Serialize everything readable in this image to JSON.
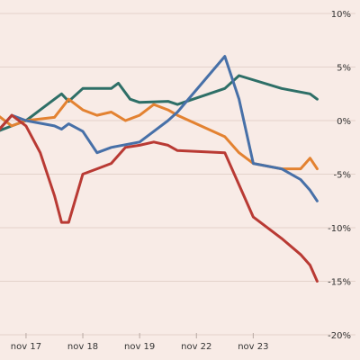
{
  "chart_data": {
    "type": "line",
    "x_ticks": [
      {
        "x": "2021-11-17",
        "label": "nov 17"
      },
      {
        "x": "2021-11-18",
        "label": "nov 18"
      },
      {
        "x": "2021-11-19",
        "label": "nov 19"
      },
      {
        "x": "2021-11-22",
        "label": "nov 22"
      },
      {
        "x": "2021-11-23",
        "label": "nov 23"
      }
    ],
    "y_ticks": [
      {
        "y": 10,
        "label": "10%"
      },
      {
        "y": 5,
        "label": "5%"
      },
      {
        "y": 0,
        "label": "0%"
      },
      {
        "y": -5,
        "label": "-5%"
      },
      {
        "y": -10,
        "label": "-10%"
      },
      {
        "y": -15,
        "label": "-15%"
      },
      {
        "y": -20,
        "label": "-20%"
      }
    ],
    "ylim": [
      -20,
      10
    ],
    "xlim": [
      "2021-11-16T13:00",
      "2021-11-24T04:00"
    ],
    "grid": "horizontal",
    "legend": "none",
    "y_axis_side": "right",
    "series": [
      {
        "color": "#2e6f67",
        "points": [
          [
            "2021-11-16T12:00",
            -1.0
          ],
          [
            "2021-11-16T18:00",
            -0.5
          ],
          [
            "2021-11-17T00:00",
            0.0
          ],
          [
            "2021-11-17T06:00",
            1.0
          ],
          [
            "2021-11-17T12:00",
            2.0
          ],
          [
            "2021-11-17T15:00",
            2.5
          ],
          [
            "2021-11-17T18:00",
            1.8
          ],
          [
            "2021-11-18T00:00",
            3.0
          ],
          [
            "2021-11-18T12:00",
            3.0
          ],
          [
            "2021-11-18T15:00",
            3.5
          ],
          [
            "2021-11-18T20:00",
            2.0
          ],
          [
            "2021-11-19T00:00",
            1.7
          ],
          [
            "2021-11-19T12:00",
            1.8
          ],
          [
            "2021-11-19T16:00",
            1.5
          ],
          [
            "2021-11-22T12:00",
            3.0
          ],
          [
            "2021-11-22T18:00",
            4.2
          ],
          [
            "2021-11-23T12:00",
            3.0
          ],
          [
            "2021-11-24T00:00",
            2.5
          ],
          [
            "2021-11-24T03:00",
            2.0
          ]
        ]
      },
      {
        "color": "#e38231",
        "points": [
          [
            "2021-11-16T12:00",
            0.5
          ],
          [
            "2021-11-16T18:00",
            -0.5
          ],
          [
            "2021-11-17T00:00",
            0.0
          ],
          [
            "2021-11-17T12:00",
            0.3
          ],
          [
            "2021-11-17T18:00",
            2.0
          ],
          [
            "2021-11-18T00:00",
            1.0
          ],
          [
            "2021-11-18T06:00",
            0.5
          ],
          [
            "2021-11-18T12:00",
            0.8
          ],
          [
            "2021-11-18T18:00",
            0.0
          ],
          [
            "2021-11-19T00:00",
            0.5
          ],
          [
            "2021-11-19T06:00",
            1.5
          ],
          [
            "2021-11-19T12:00",
            1.0
          ],
          [
            "2021-11-19T16:00",
            0.5
          ],
          [
            "2021-11-22T12:00",
            -1.5
          ],
          [
            "2021-11-22T18:00",
            -3.0
          ],
          [
            "2021-11-23T00:00",
            -4.0
          ],
          [
            "2021-11-23T12:00",
            -4.5
          ],
          [
            "2021-11-23T20:00",
            -4.5
          ],
          [
            "2021-11-24T00:00",
            -3.5
          ],
          [
            "2021-11-24T03:00",
            -4.5
          ]
        ]
      },
      {
        "color": "#4770a8",
        "points": [
          [
            "2021-11-16T12:00",
            -1.0
          ],
          [
            "2021-11-16T18:00",
            0.5
          ],
          [
            "2021-11-17T00:00",
            0.0
          ],
          [
            "2021-11-17T12:00",
            -0.5
          ],
          [
            "2021-11-17T15:00",
            -0.8
          ],
          [
            "2021-11-17T18:00",
            -0.3
          ],
          [
            "2021-11-18T00:00",
            -1.0
          ],
          [
            "2021-11-18T06:00",
            -3.0
          ],
          [
            "2021-11-18T12:00",
            -2.5
          ],
          [
            "2021-11-19T00:00",
            -2.0
          ],
          [
            "2021-11-19T06:00",
            -1.0
          ],
          [
            "2021-11-19T12:00",
            0.0
          ],
          [
            "2021-11-19T16:00",
            0.8
          ],
          [
            "2021-11-22T12:00",
            6.0
          ],
          [
            "2021-11-22T18:00",
            2.0
          ],
          [
            "2021-11-23T00:00",
            -4.0
          ],
          [
            "2021-11-23T12:00",
            -4.5
          ],
          [
            "2021-11-23T20:00",
            -5.5
          ],
          [
            "2021-11-24T00:00",
            -6.5
          ],
          [
            "2021-11-24T03:00",
            -7.5
          ]
        ]
      },
      {
        "color": "#b93a34",
        "points": [
          [
            "2021-11-16T12:00",
            -1.0
          ],
          [
            "2021-11-16T18:00",
            0.5
          ],
          [
            "2021-11-17T00:00",
            -0.5
          ],
          [
            "2021-11-17T06:00",
            -3.0
          ],
          [
            "2021-11-17T12:00",
            -7.0
          ],
          [
            "2021-11-17T15:00",
            -9.5
          ],
          [
            "2021-11-17T18:00",
            -9.5
          ],
          [
            "2021-11-18T00:00",
            -5.0
          ],
          [
            "2021-11-18T06:00",
            -4.5
          ],
          [
            "2021-11-18T12:00",
            -4.0
          ],
          [
            "2021-11-18T18:00",
            -2.5
          ],
          [
            "2021-11-19T00:00",
            -2.3
          ],
          [
            "2021-11-19T06:00",
            -2.0
          ],
          [
            "2021-11-19T12:00",
            -2.3
          ],
          [
            "2021-11-19T16:00",
            -2.8
          ],
          [
            "2021-11-22T12:00",
            -3.0
          ],
          [
            "2021-11-22T18:00",
            -6.0
          ],
          [
            "2021-11-23T00:00",
            -9.0
          ],
          [
            "2021-11-23T12:00",
            -11.0
          ],
          [
            "2021-11-23T20:00",
            -12.5
          ],
          [
            "2021-11-24T00:00",
            -13.5
          ],
          [
            "2021-11-24T03:00",
            -15.0
          ]
        ]
      }
    ]
  }
}
